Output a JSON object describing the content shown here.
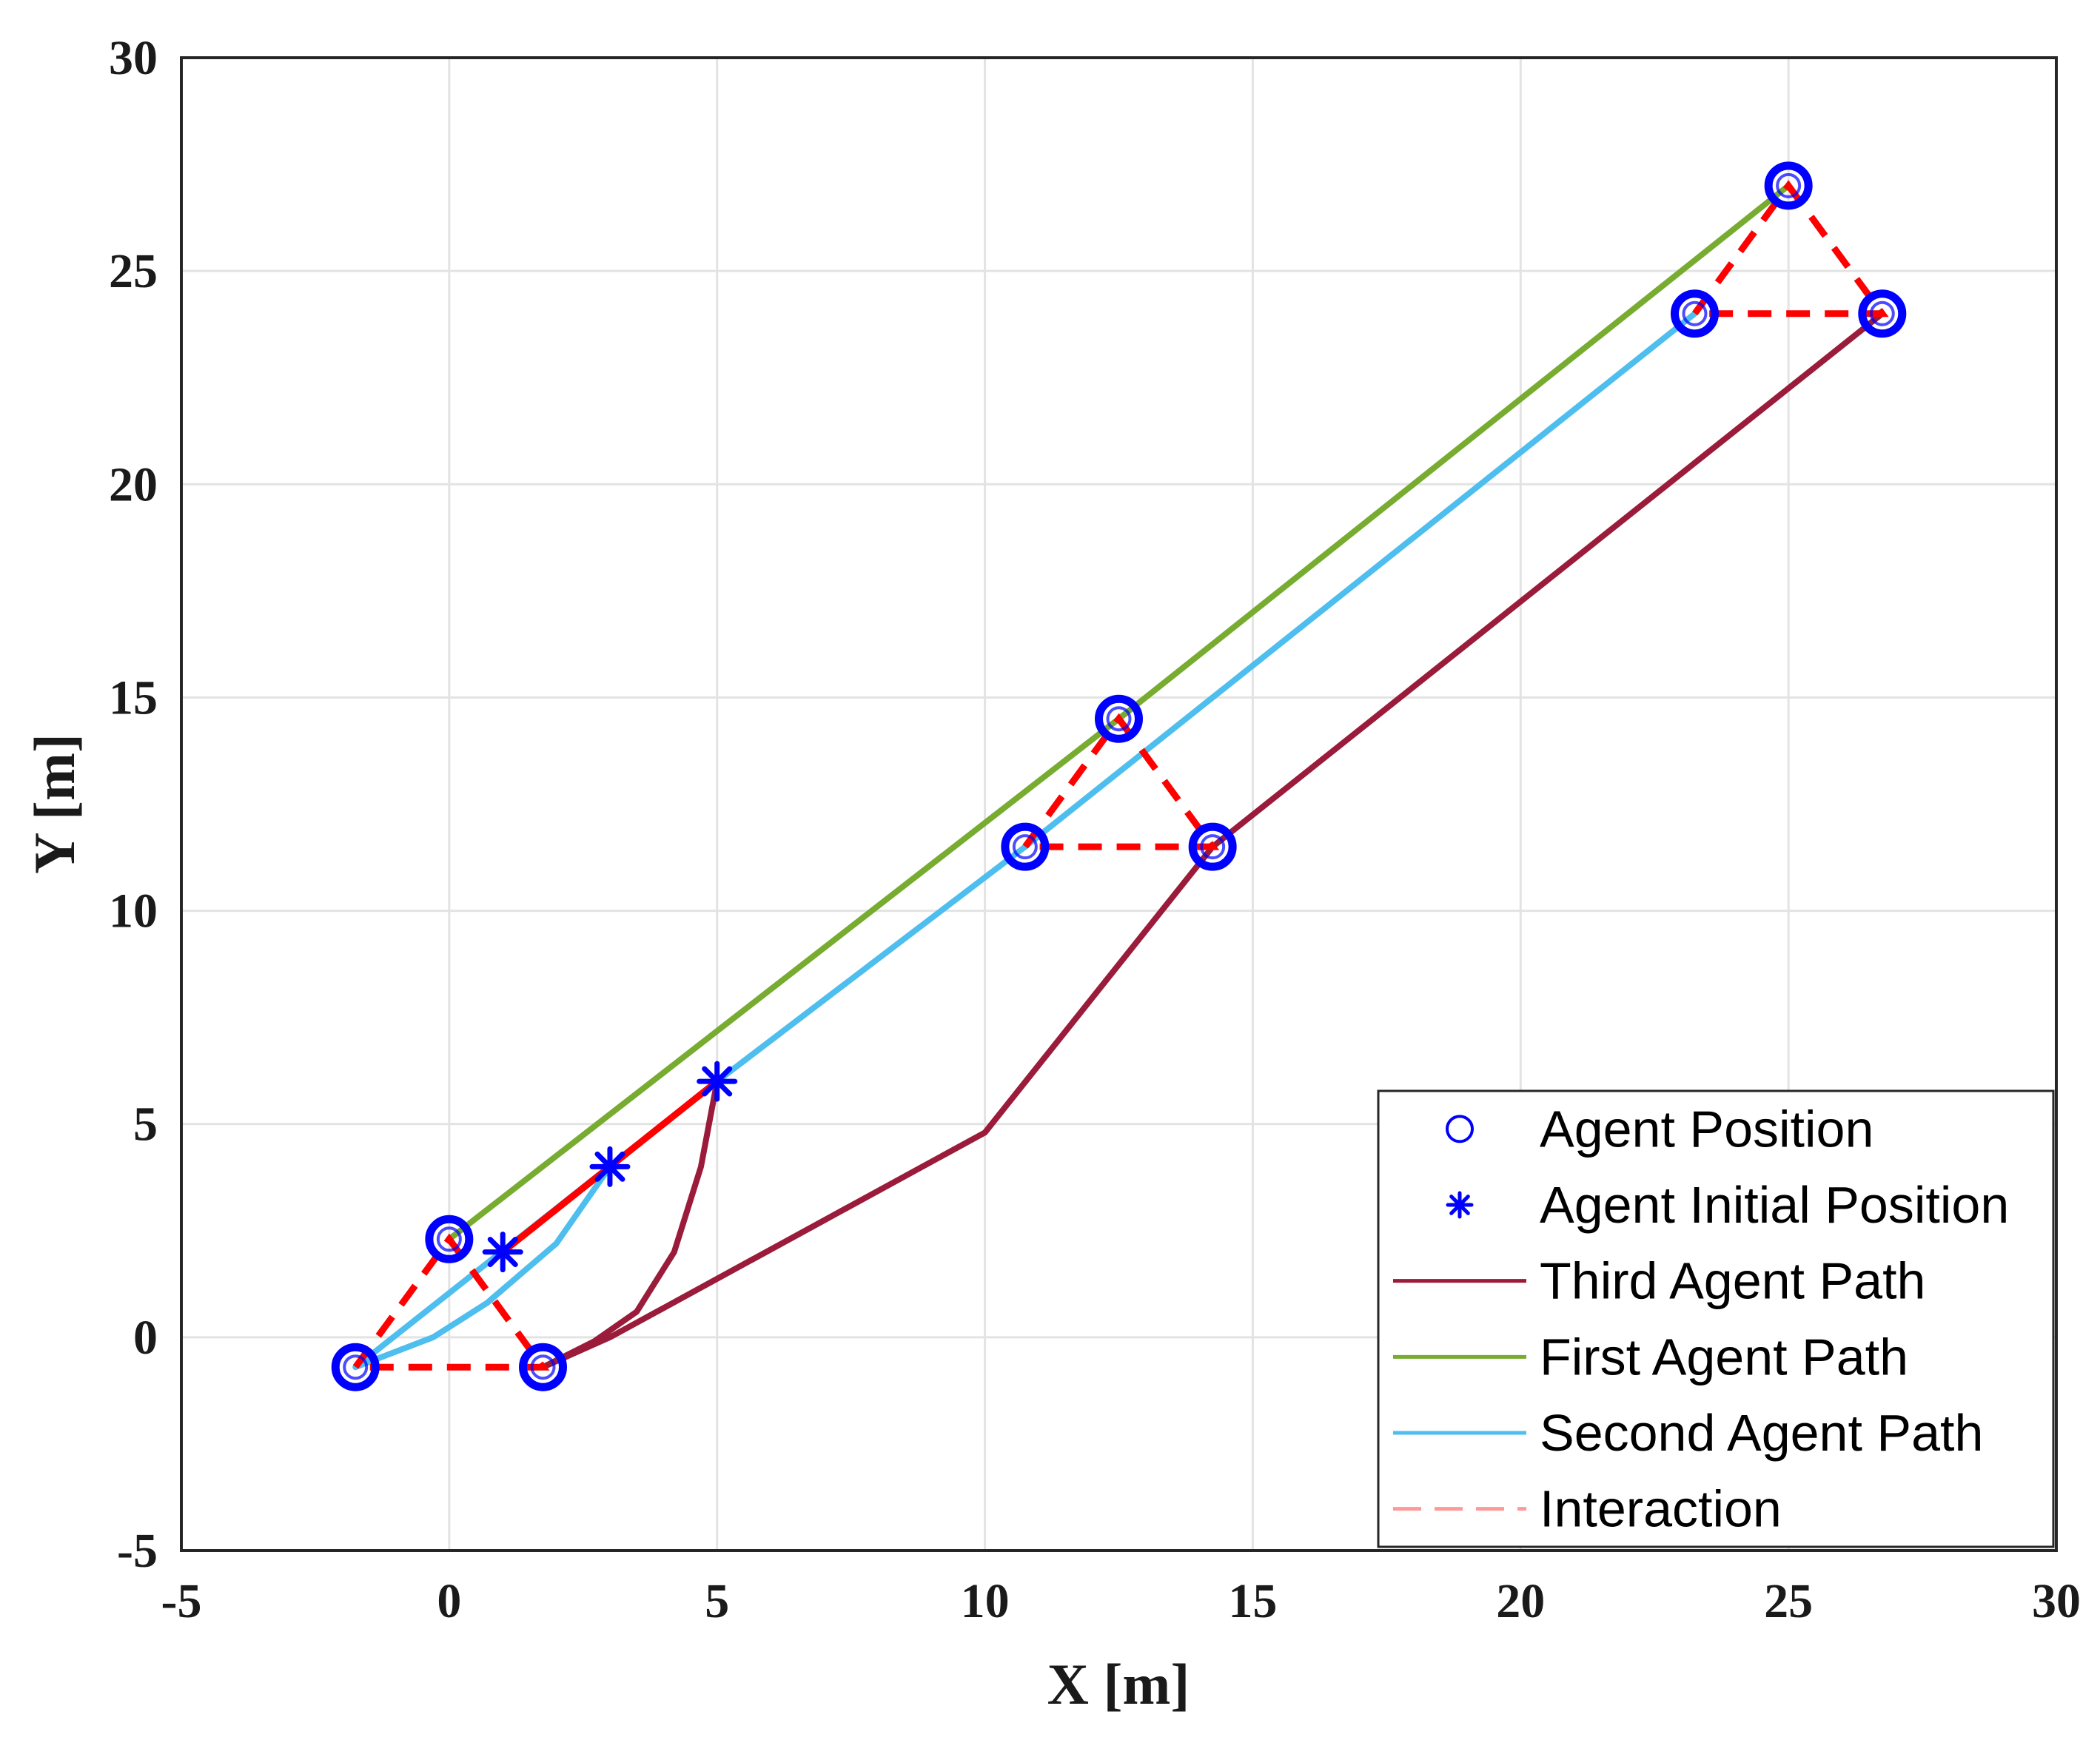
{
  "chart_data": {
    "type": "line",
    "xlabel": "X [m]",
    "ylabel": "Y [m]",
    "xlim": [
      -5,
      30
    ],
    "ylim": [
      -5,
      30
    ],
    "xticks": [
      -5,
      0,
      5,
      10,
      15,
      20,
      25,
      30
    ],
    "yticks": [
      -5,
      0,
      5,
      10,
      15,
      20,
      25,
      30
    ],
    "grid": true,
    "legend_position": "bottom-right",
    "series": [
      {
        "name": "Third Agent Path",
        "color": "#9b1b3a",
        "style": "solid",
        "points": [
          [
            5,
            6
          ],
          [
            4.7,
            4
          ],
          [
            4.2,
            2
          ],
          [
            3.5,
            0.6
          ],
          [
            2.7,
            -0.1
          ],
          [
            1.75,
            -0.7
          ],
          [
            3.0,
            0
          ],
          [
            10,
            4.8
          ],
          [
            14.25,
            11.5
          ],
          [
            26.75,
            24
          ]
        ]
      },
      {
        "name": "First Agent Path",
        "color": "#77ac30",
        "style": "solid",
        "points": [
          [
            0,
            2.3
          ],
          [
            12.5,
            14.5
          ],
          [
            25,
            27
          ]
        ]
      },
      {
        "name": "Second Agent Path",
        "color": "#4dbeee",
        "style": "solid",
        "points": [
          [
            3,
            4
          ],
          [
            2,
            2.2
          ],
          [
            0.7,
            0.8
          ],
          [
            -0.3,
            0
          ],
          [
            -1.75,
            -0.7
          ],
          [
            5,
            6
          ],
          [
            10.75,
            11.5
          ],
          [
            23.25,
            24
          ]
        ]
      }
    ],
    "interaction": {
      "name": "Interaction",
      "color": "#ff0000",
      "style": "dashed",
      "triangles": [
        [
          [
            0,
            2.3
          ],
          [
            1.75,
            -0.7
          ],
          [
            -1.75,
            -0.7
          ]
        ],
        [
          [
            1,
            2
          ],
          [
            3,
            4
          ],
          [
            5,
            6
          ]
        ],
        [
          [
            12.5,
            14.5
          ],
          [
            14.25,
            11.5
          ],
          [
            10.75,
            11.5
          ]
        ],
        [
          [
            25,
            27
          ],
          [
            26.75,
            24
          ],
          [
            23.25,
            24
          ]
        ]
      ]
    },
    "agent_positions": {
      "name": "Agent Position",
      "marker": "circle",
      "color": "#0000ff",
      "points": [
        [
          0,
          2.3
        ],
        [
          1.75,
          -0.7
        ],
        [
          -1.75,
          -0.7
        ],
        [
          12.5,
          14.5
        ],
        [
          14.25,
          11.5
        ],
        [
          10.75,
          11.5
        ],
        [
          25,
          27
        ],
        [
          26.75,
          24
        ],
        [
          23.25,
          24
        ]
      ]
    },
    "agent_initial_positions": {
      "name": "Agent Initial Position",
      "marker": "asterisk",
      "color": "#0000ff",
      "points": [
        [
          1,
          2
        ],
        [
          3,
          4
        ],
        [
          5,
          6
        ]
      ]
    },
    "legend": [
      {
        "label": "Agent Position",
        "kind": "circle",
        "color": "#0000ff"
      },
      {
        "label": "Agent Initial Position",
        "kind": "asterisk",
        "color": "#0000ff"
      },
      {
        "label": "Third Agent Path",
        "kind": "line",
        "color": "#9b1b3a"
      },
      {
        "label": "First Agent Path",
        "kind": "line",
        "color": "#77ac30"
      },
      {
        "label": "Second Agent Path",
        "kind": "line",
        "color": "#4dbeee"
      },
      {
        "label": "Interaction",
        "kind": "dashed",
        "color": "#ff9999"
      }
    ]
  }
}
